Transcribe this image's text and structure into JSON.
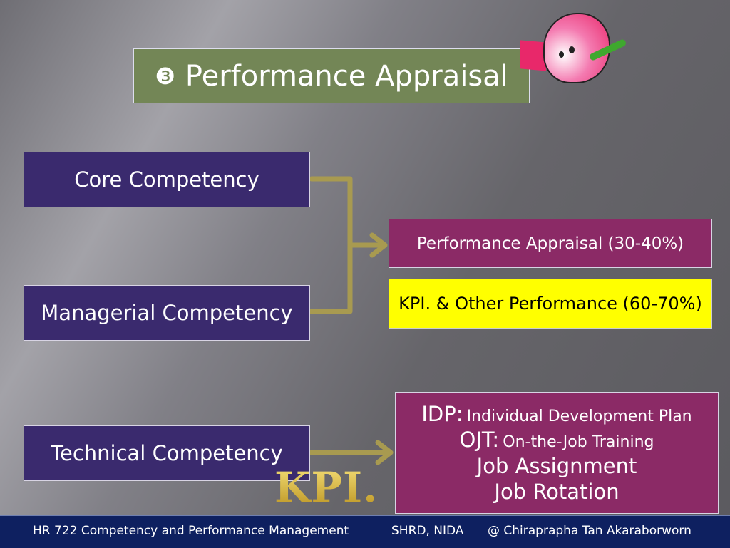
{
  "title": {
    "bullet": "❸",
    "text": "Performance Appraisal"
  },
  "competencies": [
    "Core Competency",
    "Managerial Competency",
    "Technical Competency"
  ],
  "outcomes": {
    "appraisal": "Performance Appraisal (30-40%)",
    "kpi": "KPI. & Other Performance (60-70%)"
  },
  "development": [
    {
      "abbr": "IDP:",
      "text": "Individual Development Plan"
    },
    {
      "abbr": "OJT:",
      "text": "On-the-Job Training"
    },
    {
      "abbr": "",
      "text": "Job Assignment"
    },
    {
      "abbr": "",
      "text": "Job Rotation"
    }
  ],
  "kpi_logo": "KPI.",
  "footer": {
    "course": "HR 722 Competency and Performance Management",
    "org": "SHRD, NIDA",
    "author": "@ Chiraprapha Tan Akaraborworn"
  },
  "colors": {
    "arrow": "#a89a50",
    "competency_box": "#3a2a6e",
    "outcome_box": "#8b2a66",
    "kpi_box": "#ffff00",
    "title_box": "#738656"
  }
}
